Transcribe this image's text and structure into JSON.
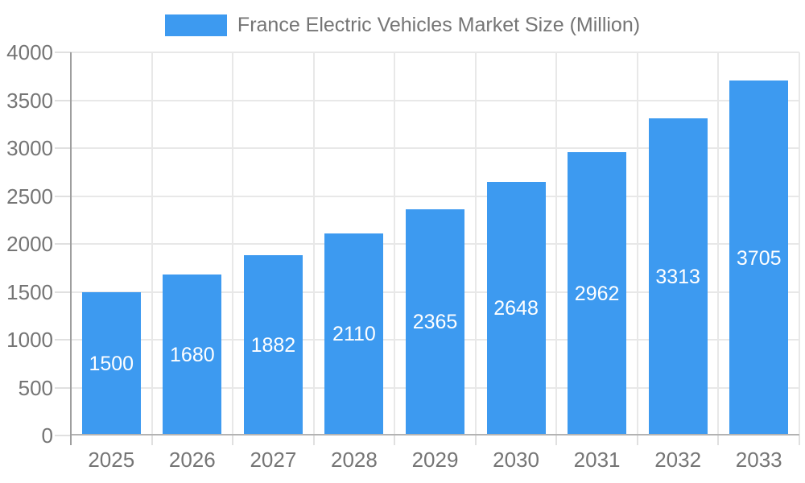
{
  "legend": {
    "label": "France Electric Vehicles Market Size (Million)"
  },
  "colors": {
    "bar": "#3D9AF0",
    "text": "#757575",
    "value_label": "#FFFFFF",
    "grid": "#E8E8E8",
    "tick": "#E0E0E0",
    "axis_line": "#9E9E9E",
    "zero_line": "#B3B3B3",
    "background": "#FFFFFF"
  },
  "chart_data": {
    "type": "bar",
    "title": "France Electric Vehicles Market Size (Million)",
    "series": [
      {
        "name": "France Electric Vehicles Market Size (Million)",
        "values": [
          1500,
          1680,
          1882,
          2110,
          2365,
          2648,
          2962,
          3313,
          3705
        ]
      }
    ],
    "categories": [
      "2025",
      "2026",
      "2027",
      "2028",
      "2029",
      "2030",
      "2031",
      "2032",
      "2033"
    ],
    "bar_value_labels": [
      "1500",
      "1680",
      "1882",
      "2110",
      "2365",
      "2648",
      "2962",
      "3313",
      "3705"
    ],
    "xlabel": "",
    "ylabel": "",
    "ylim": [
      0,
      4000
    ],
    "ytick_step": 500,
    "ytick_labels": [
      "0",
      "500",
      "1000",
      "1500",
      "2000",
      "2500",
      "3000",
      "3500",
      "4000"
    ],
    "grid": true,
    "legend_position": "top"
  }
}
